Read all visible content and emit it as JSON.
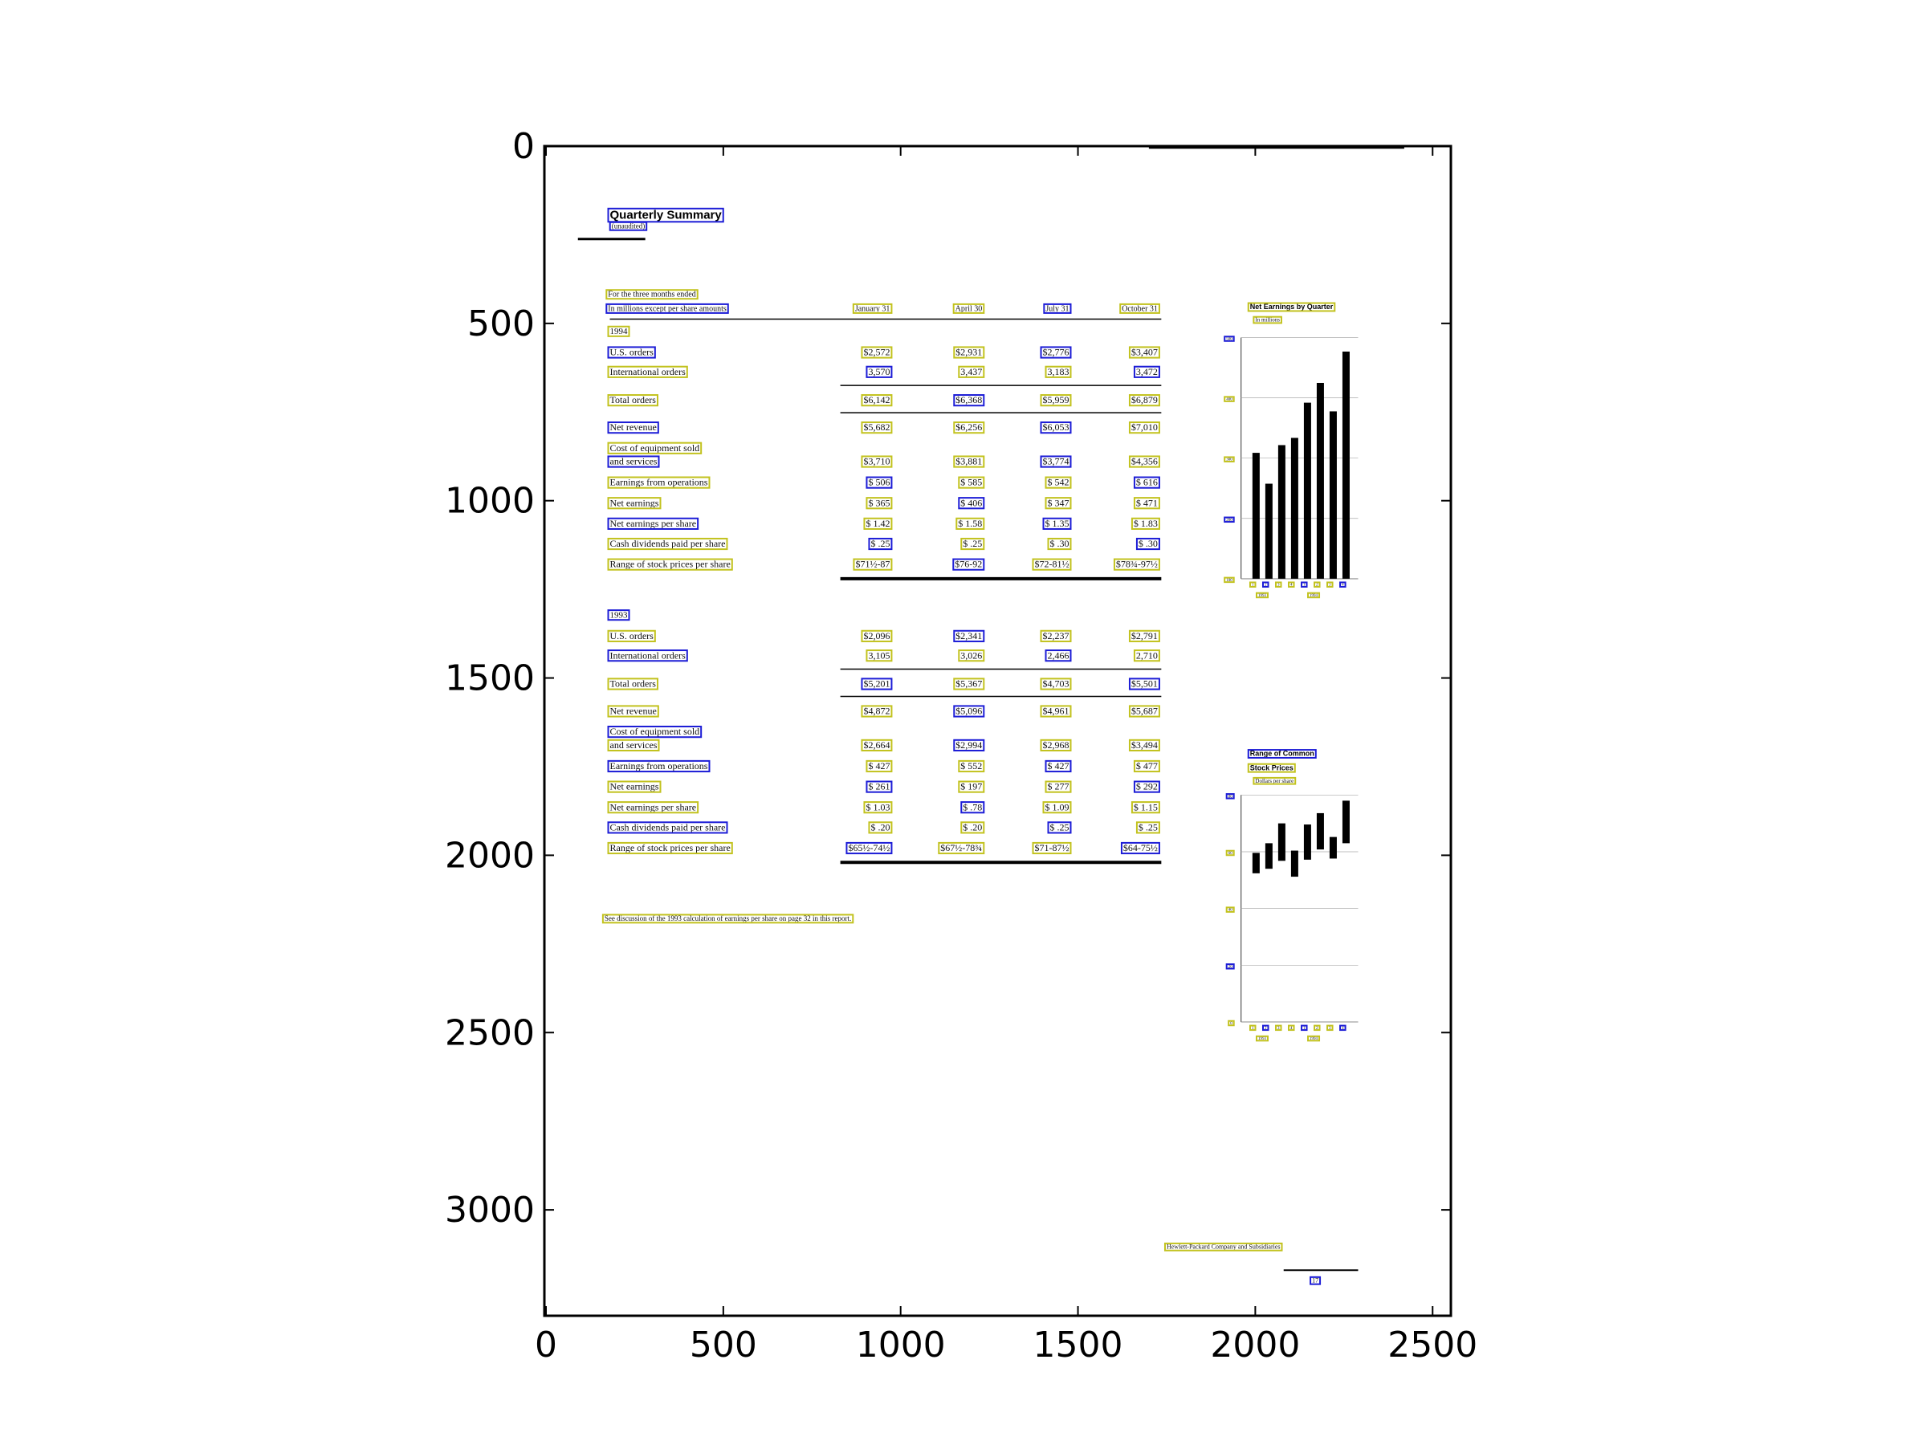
{
  "plot": {
    "x_ticks": [
      "0",
      "500",
      "1000",
      "1500",
      "2000",
      "2500"
    ],
    "y_ticks": [
      "0",
      "500",
      "1000",
      "1500",
      "2000",
      "2500",
      "3000"
    ]
  },
  "document": {
    "title": "Quarterly Summary",
    "subtitle": "(unaudited)",
    "caption_line1": "For the three months ended",
    "caption_line2": "In millions except per share amounts",
    "columns": [
      "January 31",
      "April 30",
      "July 31",
      "October 31"
    ],
    "sections": [
      {
        "year": "1994",
        "rows": [
          {
            "label": "U.S. orders",
            "values": [
              "$2,572",
              "$2,931",
              "$2,776",
              "$3,407"
            ]
          },
          {
            "label": "International orders",
            "values": [
              "3,570",
              "3,437",
              "3,183",
              "3,472"
            ]
          },
          {
            "label": "Total orders",
            "values": [
              "$6,142",
              "$6,368",
              "$5,959",
              "$6,879"
            ]
          },
          {
            "label": "Net revenue",
            "values": [
              "$5,682",
              "$6,256",
              "$6,053",
              "$7,010"
            ]
          },
          {
            "label": "Cost of equipment sold",
            "values": [
              "",
              "",
              "",
              ""
            ]
          },
          {
            "label": "and services",
            "values": [
              "$3,710",
              "$3,881",
              "$3,774",
              "$4,356"
            ]
          },
          {
            "label": "Earnings from operations",
            "values": [
              "$ 506",
              "$ 585",
              "$ 542",
              "$ 616"
            ]
          },
          {
            "label": "Net earnings",
            "values": [
              "$ 365",
              "$ 406",
              "$ 347",
              "$ 471"
            ]
          },
          {
            "label": "Net earnings per share",
            "values": [
              "$ 1.42",
              "$ 1.58",
              "$ 1.35",
              "$ 1.83"
            ]
          },
          {
            "label": "Cash dividends paid per share",
            "values": [
              "$ .25",
              "$ .25",
              "$ .30",
              "$ .30"
            ]
          },
          {
            "label": "Range of stock prices per share",
            "values": [
              "$71½-87",
              "$76-92",
              "$72-81½",
              "$78¾-97½"
            ]
          }
        ]
      },
      {
        "year": "1993",
        "rows": [
          {
            "label": "U.S. orders",
            "values": [
              "$2,096",
              "$2,341",
              "$2,237",
              "$2,791"
            ]
          },
          {
            "label": "International orders",
            "values": [
              "3,105",
              "3,026",
              "2,466",
              "2,710"
            ]
          },
          {
            "label": "Total orders",
            "values": [
              "$5,201",
              "$5,367",
              "$4,703",
              "$5,501"
            ]
          },
          {
            "label": "Net revenue",
            "values": [
              "$4,872",
              "$5,096",
              "$4,961",
              "$5,687"
            ]
          },
          {
            "label": "Cost of equipment sold",
            "values": [
              "",
              "",
              "",
              ""
            ]
          },
          {
            "label": "and services",
            "values": [
              "$2,664",
              "$2,994",
              "$2,968",
              "$3,494"
            ]
          },
          {
            "label": "Earnings from operations",
            "values": [
              "$ 427",
              "$ 552",
              "$ 427",
              "$ 477"
            ]
          },
          {
            "label": "Net earnings",
            "values": [
              "$ 261",
              "$ 197",
              "$ 277",
              "$ 292"
            ]
          },
          {
            "label": "Net earnings per share",
            "values": [
              "$ 1.03",
              "$ .78",
              "$ 1.09",
              "$ 1.15"
            ]
          },
          {
            "label": "Cash dividends paid per share",
            "values": [
              "$ .20",
              "$ .20",
              "$ .25",
              "$ .25"
            ]
          },
          {
            "label": "Range of stock prices per share",
            "values": [
              "$65½-74½",
              "$67½-78¾",
              "$71-87½",
              "$64-75½"
            ]
          }
        ]
      }
    ],
    "footnote": "See discussion of the 1993 calculation of earnings per share on page 32 in this report.",
    "page_footer": "Hewlett-Packard Company and Subsidiaries",
    "page_number": "17",
    "chart1": {
      "title": "Net Earnings by Quarter",
      "subtitle": "In millions",
      "y_ticks": [
        "500",
        "400",
        "300",
        "200",
        "100"
      ],
      "x_ticks": [
        "1",
        "2",
        "3",
        "4",
        "1",
        "2",
        "3",
        "4"
      ],
      "groups": [
        "1993",
        "1994"
      ]
    },
    "chart2": {
      "title": "Range of Common",
      "title2": "Stock Prices",
      "subtitle": "Dollars per share",
      "y_ticks": [
        "80",
        "60",
        "40",
        "20",
        "0"
      ],
      "x_ticks": [
        "1",
        "2",
        "3",
        "4",
        "1",
        "2",
        "3",
        "4"
      ],
      "groups": [
        "1993",
        "1994"
      ]
    }
  },
  "colors": {
    "box_yellow": "#c2c21e",
    "box_blue": "#1c1cd6"
  }
}
